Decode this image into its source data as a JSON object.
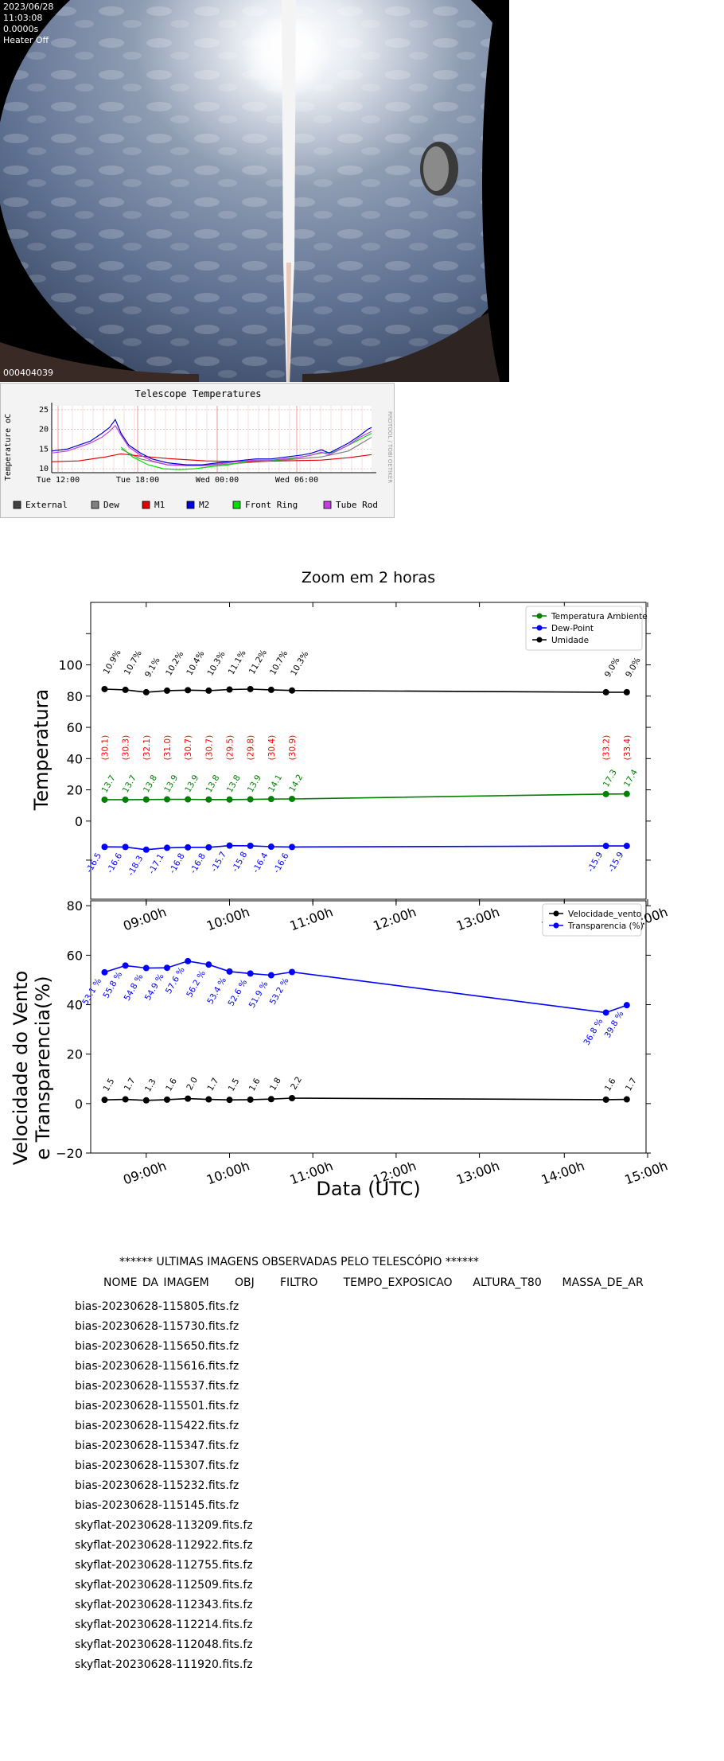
{
  "allsky": {
    "date": "2023/06/28",
    "time": "11:03:08",
    "exposure": "0.0000s",
    "heater": "Heater Off",
    "frame_id": "000404039"
  },
  "telescope_temps": {
    "title": "Telescope Temperatures",
    "ylabel": "Temperature oC",
    "side_label": "RRDTOOL / TOBI OETIKER",
    "y_ticks": [
      "10",
      "15",
      "20",
      "25"
    ],
    "x_ticks": [
      "Tue 12:00",
      "Tue 18:00",
      "Wed 00:00",
      "Wed 06:00"
    ],
    "legend": [
      {
        "name": "External",
        "color": "#404040"
      },
      {
        "name": "Dew",
        "color": "#7f7f7f"
      },
      {
        "name": "M1",
        "color": "#e00000"
      },
      {
        "name": "M2",
        "color": "#0000e0"
      },
      {
        "name": "Front Ring",
        "color": "#00e000"
      },
      {
        "name": "Tube Rod",
        "color": "#c040e0"
      }
    ]
  },
  "chart_data": [
    {
      "type": "line",
      "title": "Zoom em 2 horas",
      "ylabel": "Temperatura",
      "xlabel": "",
      "x_ticks": [
        "09:00h",
        "10:00h",
        "11:00h",
        "12:00h",
        "13:00h",
        "14:00h",
        "15:00h"
      ],
      "y_ticks": [
        "0",
        "20",
        "40",
        "60",
        "80",
        "100"
      ],
      "xlim": [
        "08:20h",
        "15:00h"
      ],
      "ylim": [
        -50,
        140
      ],
      "legend_position": "top-right",
      "x": [
        "08:30h",
        "08:45h",
        "09:00h",
        "09:15h",
        "09:30h",
        "09:45h",
        "10:00h",
        "10:15h",
        "10:30h",
        "10:45h",
        "14:30h",
        "14:45h"
      ],
      "series": [
        {
          "name": "Temperatura Ambiente",
          "color": "#008000",
          "values": [
            13.7,
            13.7,
            13.8,
            13.9,
            13.9,
            13.8,
            13.8,
            13.9,
            14.1,
            14.2,
            17.3,
            17.4
          ],
          "labels": [
            "13.7",
            "13.7",
            "13.8",
            "13.9",
            "13.9",
            "13.8",
            "13.8",
            "13.9",
            "14.1",
            "14.2",
            "17.3",
            "17.4"
          ]
        },
        {
          "name": "Dew-Point",
          "color": "#0000ff",
          "values": [
            -16.5,
            -16.6,
            -18.3,
            -17.1,
            -16.8,
            -16.8,
            -15.7,
            -15.8,
            -16.4,
            -16.6,
            -15.9,
            -15.9
          ],
          "labels": [
            "-16.5",
            "-16.6",
            "-18.3",
            "-17.1",
            "-16.8",
            "-16.8",
            "-15.7",
            "-15.8",
            "-16.4",
            "-16.6",
            "-15.9",
            "-15.9"
          ]
        },
        {
          "name": "Umidade",
          "color": "#000000",
          "values": [
            84.5,
            84.0,
            82.5,
            83.5,
            83.8,
            83.5,
            84.2,
            84.5,
            84.0,
            83.6,
            82.5,
            82.5
          ],
          "labels": [
            "10.9%",
            "10.7%",
            "9.1%",
            "10.2%",
            "10.4%",
            "10.3%",
            "11.1%",
            "11.2%",
            "10.7%",
            "10.3%",
            "9.0%",
            "9.0%"
          ]
        }
      ],
      "annotations": {
        "color": "#ff0000",
        "values": [
          "(30.1)",
          "(30.3)",
          "(32.1)",
          "(31.0)",
          "(30.7)",
          "(30.7)",
          "(29.5)",
          "(29.8)",
          "(30.4)",
          "(30.9)",
          "(33.2)",
          "(33.4)"
        ]
      }
    },
    {
      "type": "line",
      "title": "",
      "ylabel": "Velocidade do Vento\ne Transparencia(%)",
      "xlabel": "Data (UTC)",
      "x_ticks": [
        "09:00h",
        "10:00h",
        "11:00h",
        "12:00h",
        "13:00h",
        "14:00h",
        "15:00h"
      ],
      "y_ticks": [
        "−20",
        "0",
        "20",
        "40",
        "60",
        "80"
      ],
      "xlim": [
        "08:20h",
        "15:00h"
      ],
      "ylim": [
        -20,
        82
      ],
      "legend_position": "top-right",
      "x": [
        "08:30h",
        "08:45h",
        "09:00h",
        "09:15h",
        "09:30h",
        "09:45h",
        "10:00h",
        "10:15h",
        "10:30h",
        "10:45h",
        "14:30h",
        "14:45h"
      ],
      "series": [
        {
          "name": "Velocidade_vento",
          "color": "#000000",
          "values": [
            1.5,
            1.7,
            1.3,
            1.6,
            2.0,
            1.7,
            1.5,
            1.6,
            1.8,
            2.2,
            1.6,
            1.7
          ],
          "labels": [
            "1.5",
            "1.7",
            "1.3",
            "1.6",
            "2.0",
            "1.7",
            "1.5",
            "1.6",
            "1.8",
            "2.2",
            "1.6",
            "1.7"
          ]
        },
        {
          "name": "Transparencia (%)",
          "color": "#0000ff",
          "values": [
            53.1,
            55.8,
            54.8,
            54.9,
            57.6,
            56.2,
            53.4,
            52.6,
            51.9,
            53.2,
            36.8,
            39.8
          ],
          "labels": [
            "53.1 %",
            "55.8 %",
            "54.8 %",
            "54.9 %",
            "57.6 %",
            "56.2 %",
            "53.4 %",
            "52.6 %",
            "51.9 %",
            "53.2 %",
            "36.8 %",
            "39.8 %"
          ]
        }
      ]
    }
  ],
  "image_list": {
    "title": "****** ULTIMAS IMAGENS OBSERVADAS PELO TELESCÓPIO ******",
    "header": "NOME DA IMAGEM     OBJ     FILTRO     TEMPO_EXPOSICAO    ALTURA_T80    MASSA_DE_AR",
    "items": [
      "bias-20230628-115805.fits.fz",
      "bias-20230628-115730.fits.fz",
      "bias-20230628-115650.fits.fz",
      "bias-20230628-115616.fits.fz",
      "bias-20230628-115537.fits.fz",
      "bias-20230628-115501.fits.fz",
      "bias-20230628-115422.fits.fz",
      "bias-20230628-115347.fits.fz",
      "bias-20230628-115307.fits.fz",
      "bias-20230628-115232.fits.fz",
      "bias-20230628-115145.fits.fz",
      "skyflat-20230628-113209.fits.fz",
      "skyflat-20230628-112922.fits.fz",
      "skyflat-20230628-112755.fits.fz",
      "skyflat-20230628-112509.fits.fz",
      "skyflat-20230628-112343.fits.fz",
      "skyflat-20230628-112214.fits.fz",
      "skyflat-20230628-112048.fits.fz",
      "skyflat-20230628-111920.fits.fz"
    ]
  }
}
